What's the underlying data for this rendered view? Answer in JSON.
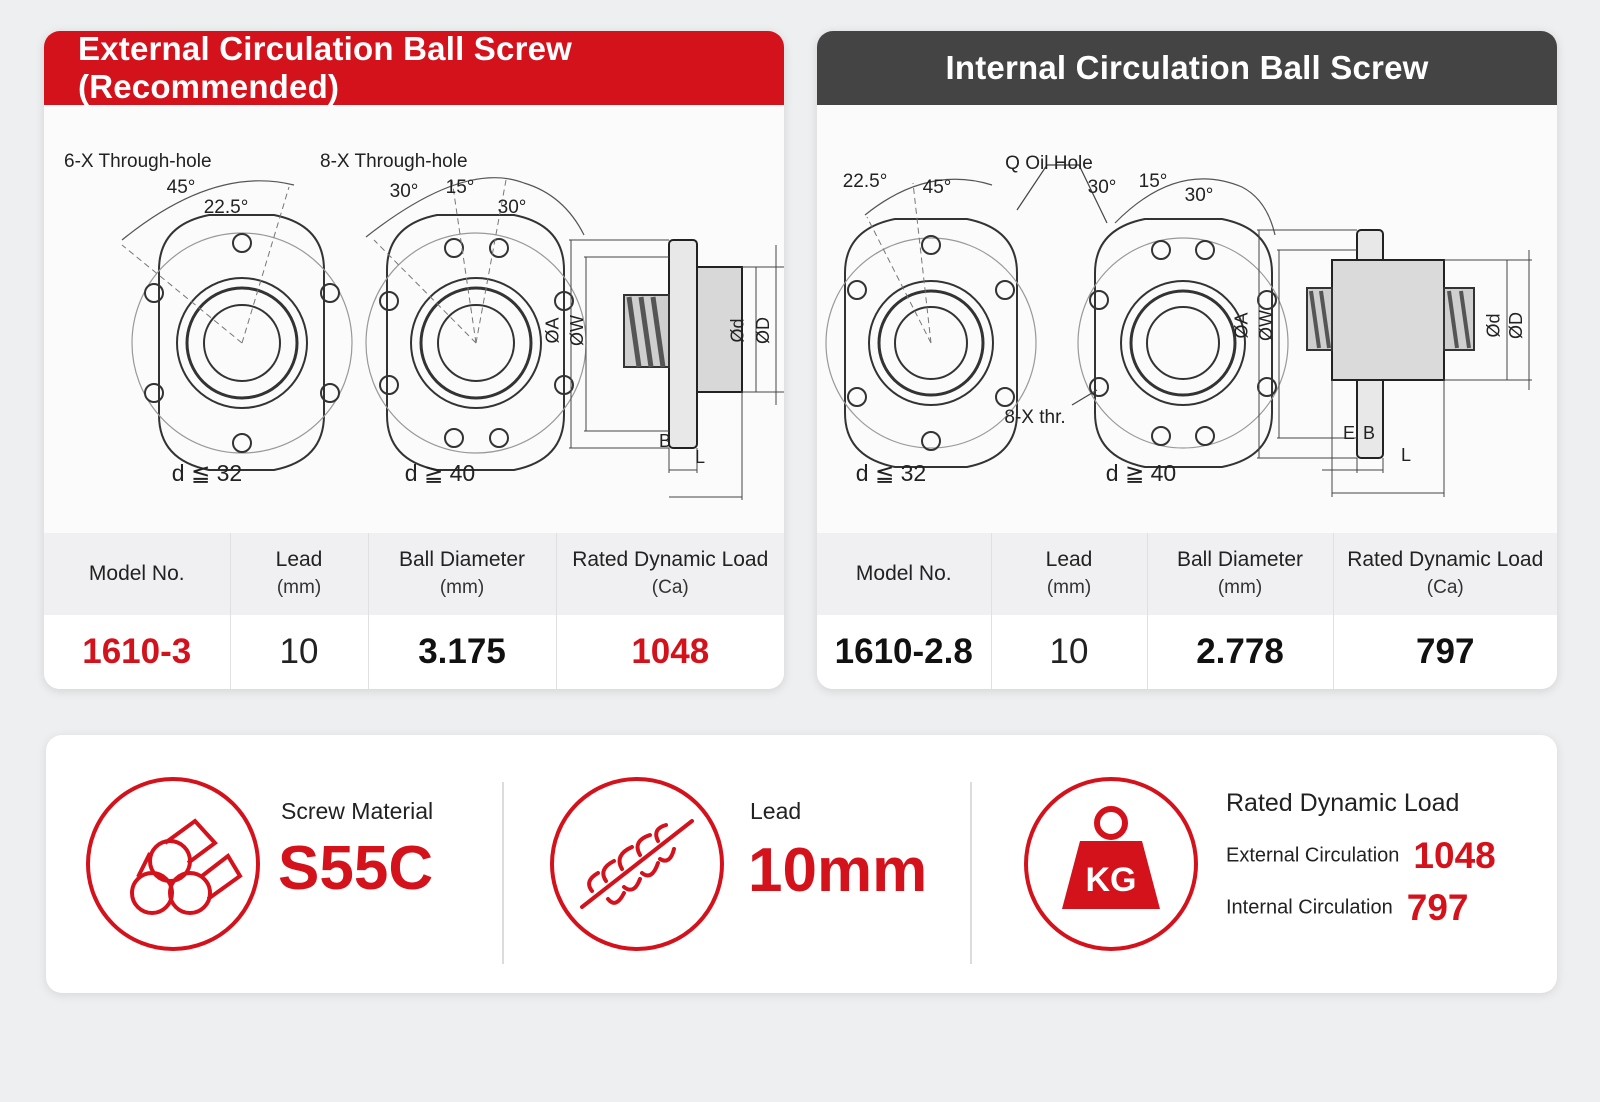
{
  "external": {
    "header": "External Circulation Ball Screw (Recommended)",
    "labels": {
      "hole6": "6-X Through-hole",
      "hole8": "8-X Through-hole",
      "angle45": "45°",
      "angle225": "22.5°",
      "angle30a": "30°",
      "angle15": "15°",
      "angle30b": "30°",
      "cond1": "d ≦ 32",
      "cond2": "d ≧ 40",
      "dimA": "ØA",
      "dimW": "ØW",
      "dimd": "Ød",
      "dimD": "ØD",
      "dimB": "B",
      "dimL": "L"
    },
    "table": {
      "headers": [
        {
          "title": "Model No.",
          "unit": ""
        },
        {
          "title": "Lead",
          "unit": "(mm)"
        },
        {
          "title": "Ball Diameter",
          "unit": "(mm)"
        },
        {
          "title": "Rated Dynamic Load",
          "unit": "(Ca)"
        }
      ],
      "row": [
        "1610-3",
        "10",
        "3.175",
        "1048"
      ]
    }
  },
  "internal": {
    "header": "Internal Circulation Ball Screw",
    "labels": {
      "oil": "Q Oil Hole",
      "thr": "8-X thr.",
      "angle225": "22.5°",
      "angle45": "45°",
      "angle30a": "30°",
      "angle15": "15°",
      "angle30b": "30°",
      "cond1": "d ≦ 32",
      "cond2": "d ≧ 40",
      "dimA": "ØA",
      "dimW": "ØW",
      "dimd": "Ød",
      "dimD": "ØD",
      "dimE": "E",
      "dimB": "B",
      "dimL": "L"
    },
    "table": {
      "headers": [
        {
          "title": "Model No.",
          "unit": ""
        },
        {
          "title": "Lead",
          "unit": "(mm)"
        },
        {
          "title": "Ball Diameter",
          "unit": "(mm)"
        },
        {
          "title": "Rated Dynamic Load",
          "unit": "(Ca)"
        }
      ],
      "row": [
        "1610-2.8",
        "10",
        "2.778",
        "797"
      ]
    }
  },
  "features": {
    "material": {
      "label": "Screw Material",
      "value": "S55C",
      "icon": "steel-bars-icon"
    },
    "lead": {
      "label": "Lead",
      "value": "10mm",
      "icon": "screw-icon"
    },
    "load": {
      "label": "Rated Dynamic Load",
      "icon": "kg-weight-icon",
      "icon_text": "KG",
      "external_label": "External Circulation",
      "external_value": "1048",
      "internal_label": "Internal Circulation",
      "internal_value": "797"
    }
  },
  "colors": {
    "accent": "#d4121c",
    "dark_header": "#444444"
  }
}
